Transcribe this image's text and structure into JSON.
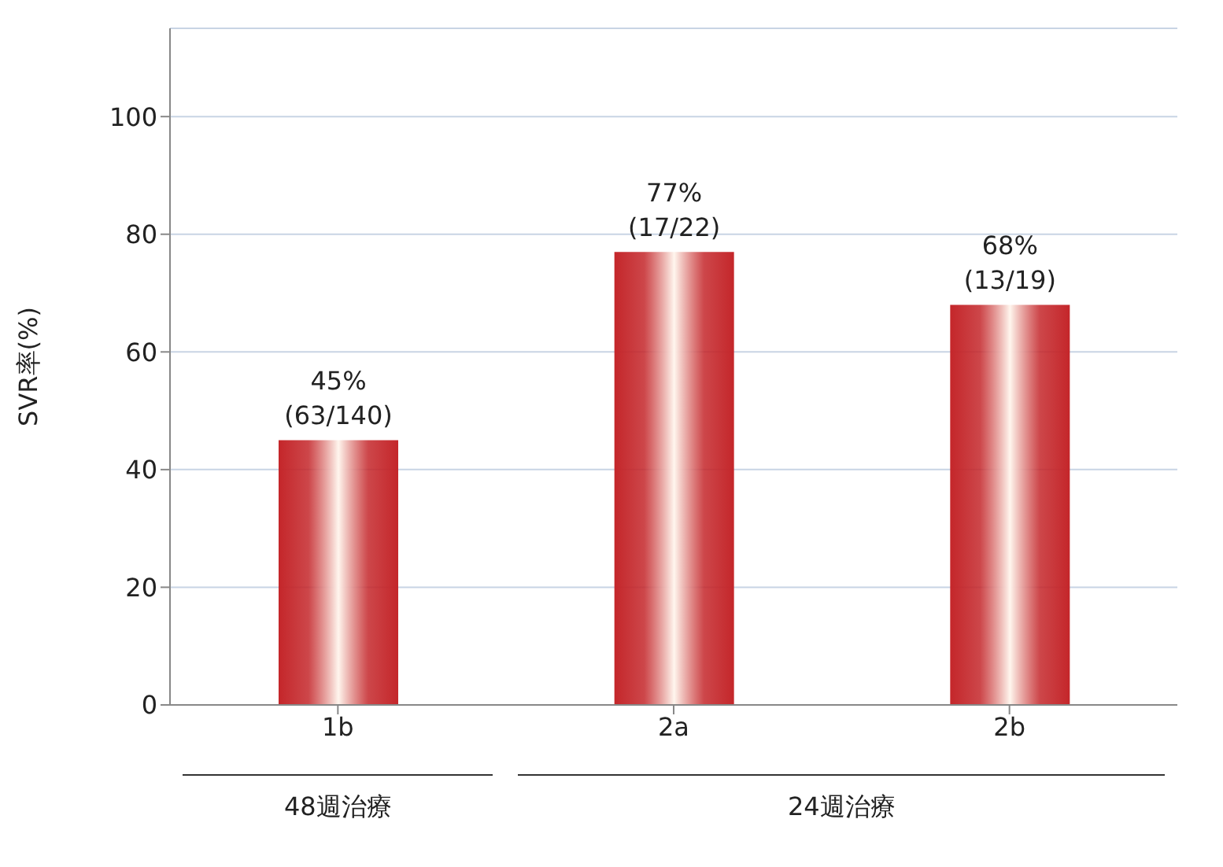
{
  "chart_data": {
    "type": "bar",
    "ylabel": "SVR率(%)",
    "categories": [
      "1b",
      "2a",
      "2b"
    ],
    "values": [
      45,
      77,
      68
    ],
    "color": "#c4262a",
    "value_labels": [
      "45%\n(63/140)",
      "77%\n(17/22)",
      "68%\n(13/19)"
    ],
    "ylim": [
      0,
      115
    ],
    "yticks": [
      0,
      20,
      40,
      60,
      80,
      100
    ],
    "grid": "y",
    "annotations": [
      "48週治療",
      "24週治療"
    ]
  }
}
